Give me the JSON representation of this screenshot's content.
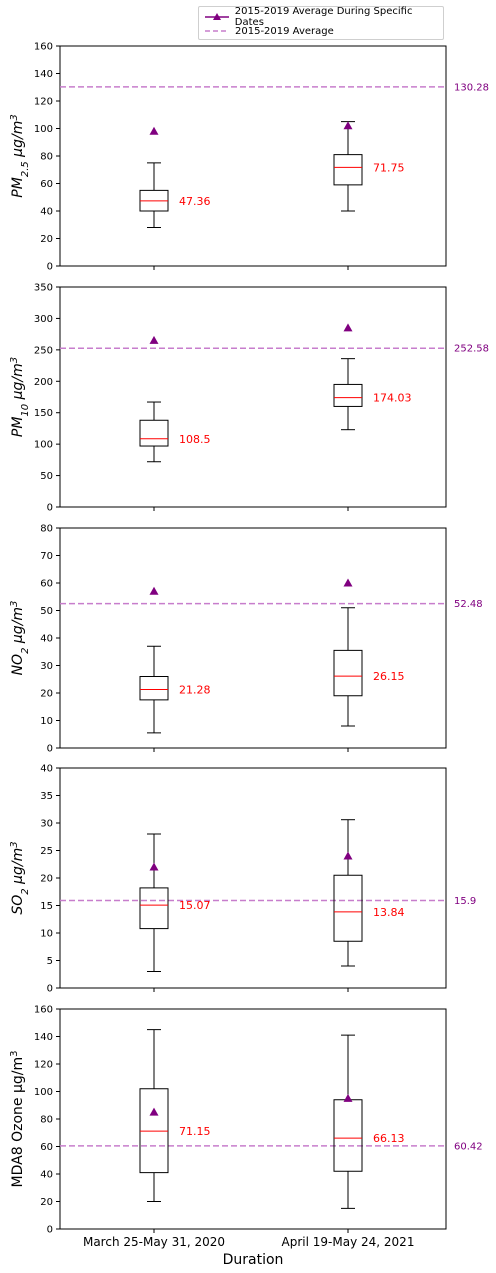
{
  "legend": {
    "specific_label": "2015-2019 Average During Specific Dates",
    "overall_label": "2015-2019 Average"
  },
  "xlabel": "Duration",
  "colors": {
    "median": "#ff0000",
    "marker": "#800080",
    "dashed": "#c77dcc",
    "dashed_label": "#800080",
    "box": "#000000"
  },
  "chart_data": [
    {
      "type": "box",
      "ylabel_html": "PM<tspan baseline-shift='sub' font-size='10'>2.5</tspan> μg/m<tspan baseline-shift='super' font-size='10'>3</tspan>",
      "ylim": [
        0,
        160
      ],
      "yticks": [
        0,
        20,
        40,
        60,
        80,
        100,
        120,
        140,
        160
      ],
      "categories": [
        "March 25-May 31, 2020",
        "April 19-May 24, 2021"
      ],
      "boxes": [
        {
          "whisker_low": 28,
          "q1": 40,
          "median": 47.36,
          "q3": 55,
          "whisker_high": 75,
          "median_label": "47.36",
          "specific_avg": 98
        },
        {
          "whisker_low": 40,
          "q1": 59,
          "median": 71.75,
          "q3": 81,
          "whisker_high": 105,
          "median_label": "71.75",
          "specific_avg": 102
        }
      ],
      "overall_avg": 130.28,
      "overall_label": "130.28"
    },
    {
      "type": "box",
      "ylabel_html": "PM<tspan baseline-shift='sub' font-size='10'>10</tspan> μg/m<tspan baseline-shift='super' font-size='10'>3</tspan>",
      "ylim": [
        0,
        350
      ],
      "yticks": [
        0,
        50,
        100,
        150,
        200,
        250,
        300,
        350
      ],
      "categories": [
        "March 25-May 31, 2020",
        "April 19-May 24, 2021"
      ],
      "boxes": [
        {
          "whisker_low": 72,
          "q1": 97,
          "median": 108.5,
          "q3": 138,
          "whisker_high": 167,
          "median_label": "108.5",
          "specific_avg": 265
        },
        {
          "whisker_low": 123,
          "q1": 160,
          "median": 174.03,
          "q3": 195,
          "whisker_high": 236,
          "median_label": "174.03",
          "specific_avg": 285
        }
      ],
      "overall_avg": 252.58,
      "overall_label": "252.58"
    },
    {
      "type": "box",
      "ylabel_html": "NO<tspan baseline-shift='sub' font-size='10'>2</tspan> μg/m<tspan baseline-shift='super' font-size='10'>3</tspan>",
      "ylim": [
        0,
        80
      ],
      "yticks": [
        0,
        10,
        20,
        30,
        40,
        50,
        60,
        70,
        80
      ],
      "categories": [
        "March 25-May 31, 2020",
        "April 19-May 24, 2021"
      ],
      "boxes": [
        {
          "whisker_low": 5.5,
          "q1": 17.5,
          "median": 21.28,
          "q3": 26,
          "whisker_high": 37,
          "median_label": "21.28",
          "specific_avg": 57
        },
        {
          "whisker_low": 8,
          "q1": 19,
          "median": 26.15,
          "q3": 35.5,
          "whisker_high": 51,
          "median_label": "26.15",
          "specific_avg": 60
        }
      ],
      "overall_avg": 52.48,
      "overall_label": "52.48"
    },
    {
      "type": "box",
      "ylabel_html": "SO<tspan baseline-shift='sub' font-size='10'>2</tspan> μg/m<tspan baseline-shift='super' font-size='10'>3</tspan>",
      "ylim": [
        0,
        40
      ],
      "yticks": [
        0,
        5,
        10,
        15,
        20,
        25,
        30,
        35,
        40
      ],
      "categories": [
        "March 25-May 31, 2020",
        "April 19-May 24, 2021"
      ],
      "boxes": [
        {
          "whisker_low": 3,
          "q1": 10.8,
          "median": 15.07,
          "q3": 18.2,
          "whisker_high": 28,
          "median_label": "15.07",
          "specific_avg": 22
        },
        {
          "whisker_low": 4,
          "q1": 8.5,
          "median": 13.84,
          "q3": 20.5,
          "whisker_high": 30.6,
          "median_label": "13.84",
          "specific_avg": 24
        }
      ],
      "overall_avg": 15.9,
      "overall_label": "15.9"
    },
    {
      "type": "box",
      "ylabel_html": "MDA8 Ozone μg/m<tspan baseline-shift='super' font-size='10'>3</tspan>",
      "ylim": [
        0,
        160
      ],
      "yticks": [
        0,
        20,
        40,
        60,
        80,
        100,
        120,
        140,
        160
      ],
      "categories": [
        "March 25-May 31, 2020",
        "April 19-May 24, 2021"
      ],
      "boxes": [
        {
          "whisker_low": 20,
          "q1": 41,
          "median": 71.15,
          "q3": 102,
          "whisker_high": 145,
          "median_label": "71.15",
          "specific_avg": 85
        },
        {
          "whisker_low": 15,
          "q1": 42,
          "median": 66.13,
          "q3": 94,
          "whisker_high": 141,
          "median_label": "66.13",
          "specific_avg": 95
        }
      ],
      "overall_avg": 60.42,
      "overall_label": "60.42",
      "show_xticklabels": true
    }
  ]
}
